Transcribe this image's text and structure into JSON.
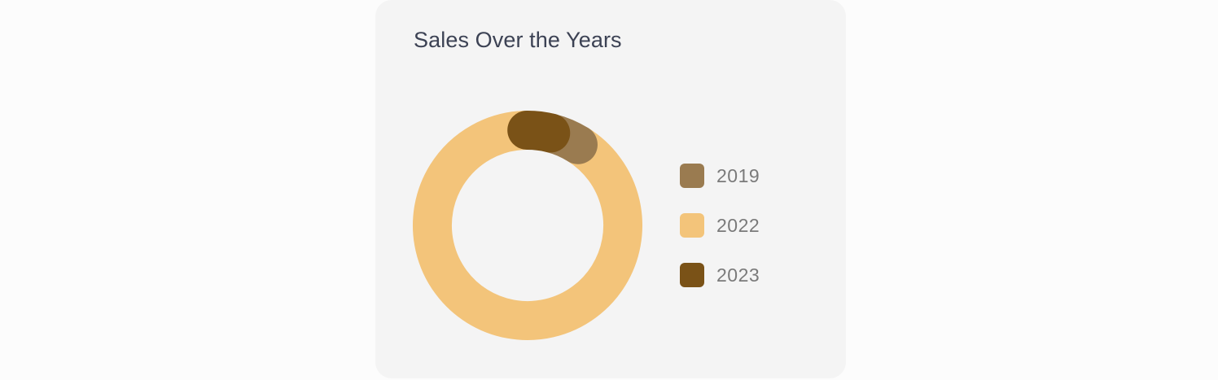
{
  "chart_data": {
    "type": "pie",
    "title": "Sales Over the Years",
    "categories": [
      "2019",
      "2022",
      "2023"
    ],
    "values": [
      5,
      91,
      4
    ],
    "colors": [
      "#9a7b50",
      "#f3c47a",
      "#7a5217"
    ],
    "legend_position": "right",
    "hole": 0.66
  }
}
